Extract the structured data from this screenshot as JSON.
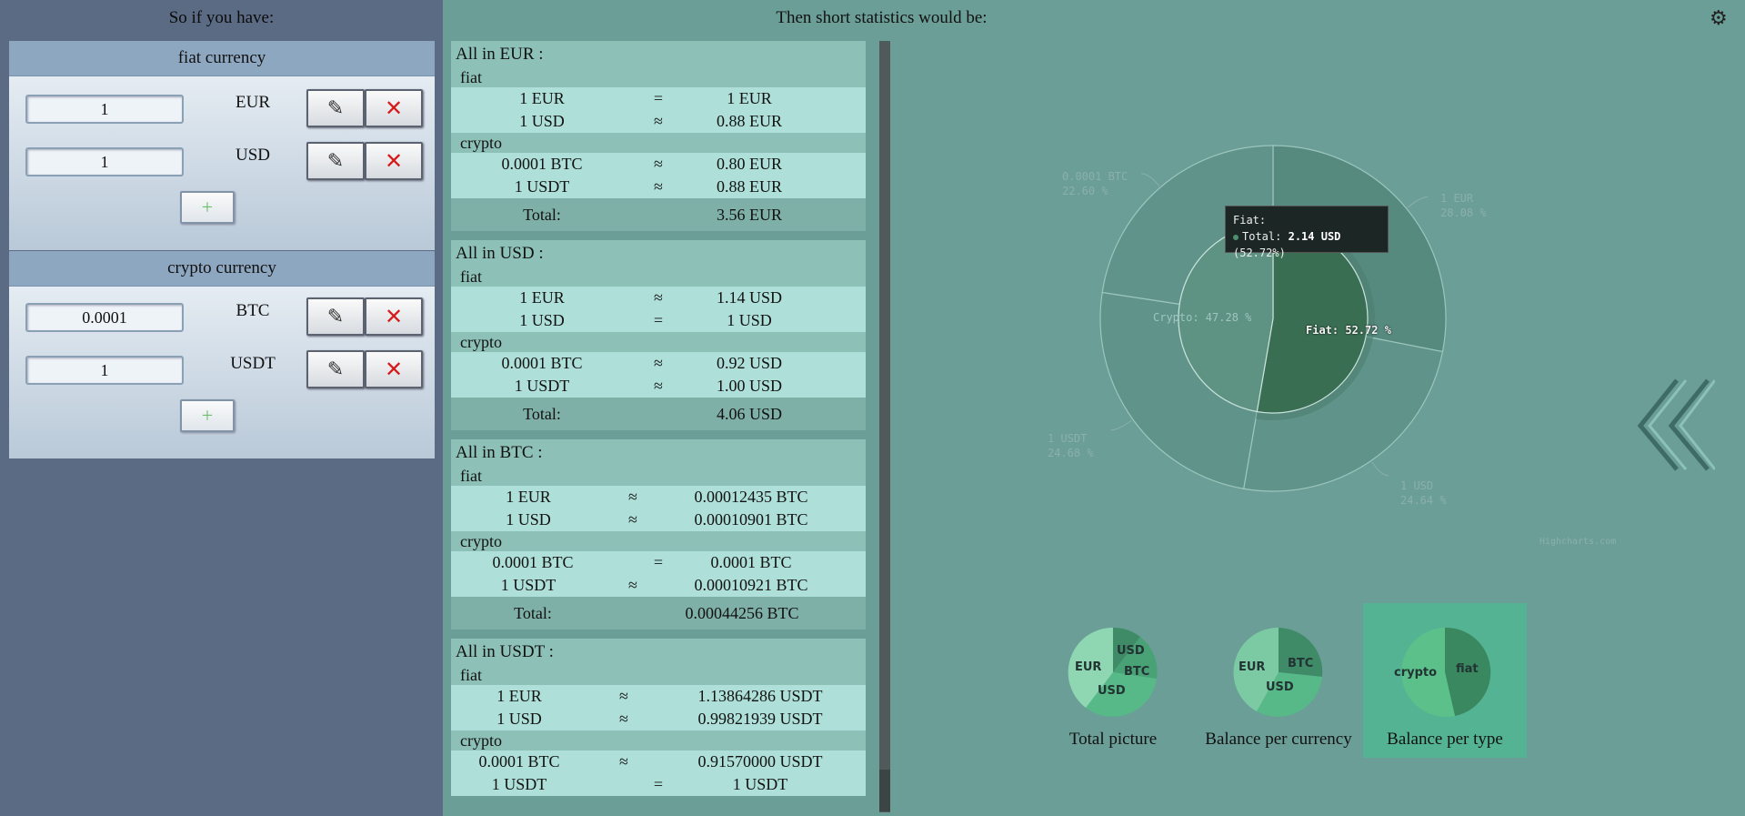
{
  "left": {
    "heading": "So if you have:",
    "fiat": {
      "header": "fiat currency",
      "rows": [
        {
          "amount": "1",
          "code": "EUR"
        },
        {
          "amount": "1",
          "code": "USD"
        }
      ],
      "add_label": "+"
    },
    "crypto": {
      "header": "crypto currency",
      "rows": [
        {
          "amount": "0.0001",
          "code": "BTC"
        },
        {
          "amount": "1",
          "code": "USDT"
        }
      ],
      "add_label": "+"
    },
    "edit_icon": "pencil-icon",
    "delete_icon": "close-icon"
  },
  "middle": {
    "heading": "Then short statistics would be:",
    "blocks": [
      {
        "title": "All in EUR :",
        "fiat_label": "fiat",
        "fiat": [
          {
            "l": "1 EUR",
            "op": "=",
            "r": "1 EUR"
          },
          {
            "l": "1 USD",
            "op": "≈",
            "r": "0.88 EUR"
          }
        ],
        "crypto_label": "crypto",
        "crypto": [
          {
            "l": "0.0001 BTC",
            "op": "≈",
            "r": "0.80 EUR"
          },
          {
            "l": "1 USDT",
            "op": "≈",
            "r": "0.88 EUR"
          }
        ],
        "total_label": "Total:",
        "total": "3.56 EUR"
      },
      {
        "title": "All in USD :",
        "fiat_label": "fiat",
        "fiat": [
          {
            "l": "1 EUR",
            "op": "≈",
            "r": "1.14 USD"
          },
          {
            "l": "1 USD",
            "op": "=",
            "r": "1 USD"
          }
        ],
        "crypto_label": "crypto",
        "crypto": [
          {
            "l": "0.0001 BTC",
            "op": "≈",
            "r": "0.92 USD"
          },
          {
            "l": "1 USDT",
            "op": "≈",
            "r": "1.00 USD"
          }
        ],
        "total_label": "Total:",
        "total": "4.06 USD"
      },
      {
        "title": "All in BTC :",
        "fiat_label": "fiat",
        "fiat": [
          {
            "l": "1 EUR",
            "op": "≈",
            "r": "0.00012435 BTC"
          },
          {
            "l": "1 USD",
            "op": "≈",
            "r": "0.00010901 BTC"
          }
        ],
        "crypto_label": "crypto",
        "crypto": [
          {
            "l": "0.0001 BTC",
            "op": "=",
            "r": "0.0001 BTC"
          },
          {
            "l": "1 USDT",
            "op": "≈",
            "r": "0.00010921 BTC"
          }
        ],
        "total_label": "Total:",
        "total": "0.00044256 BTC"
      },
      {
        "title": "All in USDT :",
        "fiat_label": "fiat",
        "fiat": [
          {
            "l": "1 EUR",
            "op": "≈",
            "r": "1.13864286 USDT"
          },
          {
            "l": "1 USD",
            "op": "≈",
            "r": "0.99821939 USDT"
          }
        ],
        "crypto_label": "crypto",
        "crypto": [
          {
            "l": "0.0001 BTC",
            "op": "≈",
            "r": "0.91570000 USDT"
          },
          {
            "l": "1 USDT",
            "op": "=",
            "r": "1 USDT"
          }
        ]
      }
    ]
  },
  "chart": {
    "settings_icon": "gear-icon",
    "back_icon": "double-chevron-left-icon",
    "credits": "Highcharts.com",
    "tooltip": {
      "title": "Fiat:",
      "label": "Total:",
      "value": "2.14 USD",
      "pct": "(52.72%)"
    },
    "thumbnails": [
      {
        "label": "Total picture",
        "slices": [
          "EUR",
          "USD",
          "BTC",
          "USD"
        ]
      },
      {
        "label": "Balance per currency",
        "slices": [
          "EUR",
          "BTC",
          "USD"
        ]
      },
      {
        "label": "Balance per type",
        "slices": [
          "crypto",
          "fiat"
        ]
      }
    ],
    "colors": {
      "fiat_inner": "#3a6e52",
      "crypto_inner": "#5e9282",
      "outer": "#60948a",
      "outer_dark": "#578a7f",
      "active_thumb": "#54b392"
    }
  },
  "chart_data": {
    "type": "pie",
    "title": "",
    "inner": [
      {
        "name": "Fiat",
        "label": "Fiat: 52.72 %",
        "value": 52.72
      },
      {
        "name": "Crypto",
        "label": "Crypto: 47.28 %",
        "value": 47.28
      }
    ],
    "outer": [
      {
        "name": "1 EUR",
        "pct_label": "28.08 %",
        "value": 28.08
      },
      {
        "name": "1 USD",
        "pct_label": "24.64 %",
        "value": 24.64
      },
      {
        "name": "1 USDT",
        "pct_label": "24.68 %",
        "value": 24.68
      },
      {
        "name": "0.0001 BTC",
        "pct_label": "22.60 %",
        "value": 22.6
      }
    ]
  }
}
